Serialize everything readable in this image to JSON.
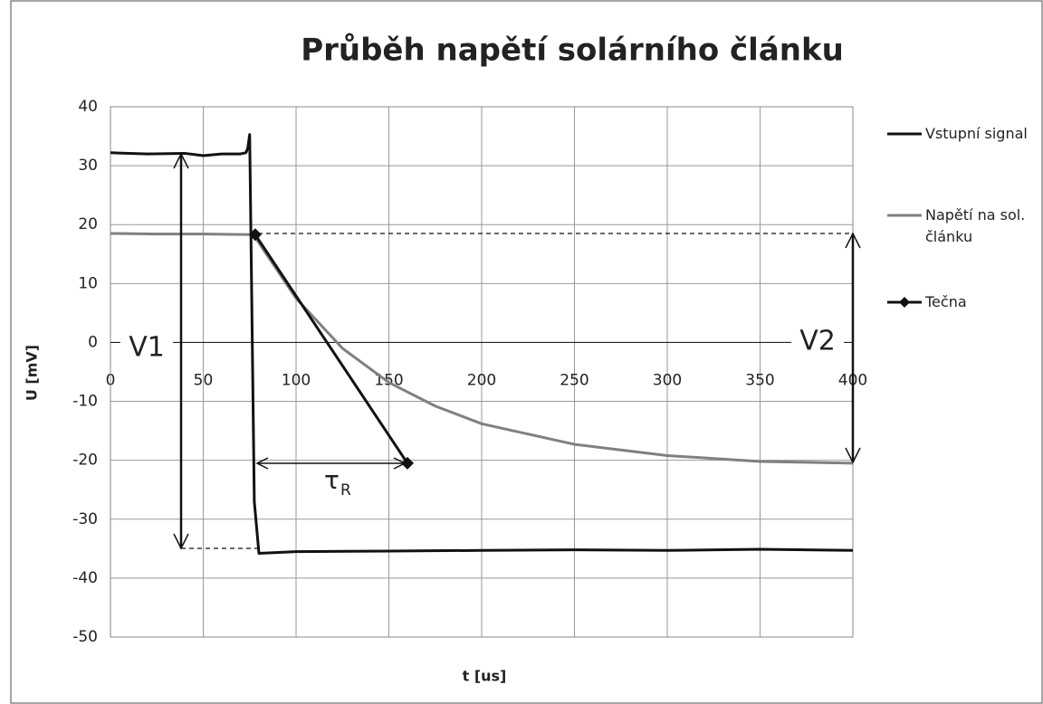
{
  "chart_data": {
    "type": "line",
    "title": "Průběh napětí solárního článku",
    "x_label": "t [us]",
    "y_label": "U [mV]",
    "xlim": [
      0,
      400
    ],
    "xticks": [
      0,
      50,
      100,
      150,
      200,
      250,
      300,
      350,
      400
    ],
    "ylim": [
      -50,
      40
    ],
    "yticks": [
      -50,
      -40,
      -30,
      -20,
      -10,
      0,
      10,
      20,
      30,
      40
    ],
    "grid": true,
    "legend": "right",
    "annotations": [
      "V1",
      "V2"
    ],
    "tangent_label": {
      "main": "τ",
      "sub": "R"
    },
    "series": [
      {
        "name": "Vstupní signal",
        "color": "#111111",
        "marker": "none",
        "x": [
          0,
          20,
          40,
          50,
          60,
          70,
          73,
          74,
          75,
          77.5,
          80,
          100,
          150,
          200,
          250,
          300,
          350,
          400
        ],
        "values": [
          32.2,
          32,
          32.1,
          31.7,
          32,
          32,
          32.2,
          33,
          35.3,
          -27,
          -35.8,
          -35.5,
          -35.4,
          -35.3,
          -35.2,
          -35.3,
          -35.1,
          -35.3
        ]
      },
      {
        "name": "Napětí na sol. článku",
        "color": "#808080",
        "marker": "none",
        "x": [
          0,
          25,
          50,
          77,
          100,
          125,
          150,
          175,
          200,
          250,
          300,
          350,
          400
        ],
        "values": [
          18.5,
          18.4,
          18.4,
          18.3,
          7.5,
          -1,
          -6.8,
          -10.8,
          -13.8,
          -17.3,
          -19.2,
          -20.2,
          -20.5
        ]
      },
      {
        "name": "Tečna",
        "color": "#111111",
        "marker": "diamond",
        "x": [
          78,
          160
        ],
        "values": [
          18.3,
          -20.5
        ]
      }
    ]
  }
}
